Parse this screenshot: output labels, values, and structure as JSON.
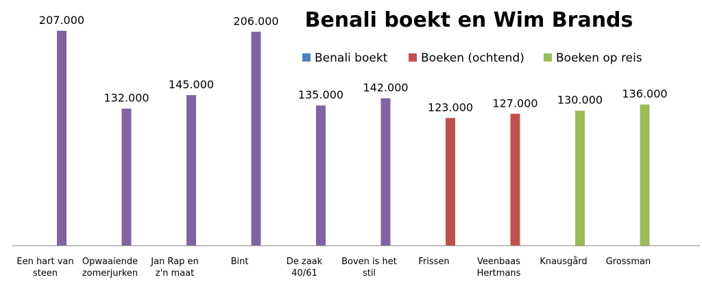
{
  "chart_data": {
    "type": "bar",
    "title": "Benali boekt en Wim Brands",
    "xlabel": "",
    "ylabel": "",
    "ylim": [
      0,
      230000
    ],
    "grid": false,
    "legend_position": "top",
    "legend": [
      {
        "name": "Benali boekt",
        "color": "#4F81BD"
      },
      {
        "name": "Boeken (ochtend)",
        "color": "#C0504D"
      },
      {
        "name": "Boeken op reis",
        "color": "#9BBB59"
      }
    ],
    "categories": [
      [
        "Een hart van",
        "steen"
      ],
      [
        "Opwaaiende",
        "zomerjurken"
      ],
      [
        "Jan Rap en",
        "z'n maat"
      ],
      [
        "Bint"
      ],
      [
        "De zaak",
        "40/61"
      ],
      [
        "Boven is het",
        "stil"
      ],
      [
        "Frissen"
      ],
      [
        "Veenbaas",
        "Hertmans"
      ],
      [
        "Knausgård"
      ],
      [
        "Grossman"
      ]
    ],
    "values": [
      207000,
      132000,
      145000,
      206000,
      135000,
      142000,
      123000,
      127000,
      130000,
      136000
    ],
    "value_labels": [
      "207.000",
      "132.000",
      "145.000",
      "206.000",
      "135.000",
      "142.000",
      "123.000",
      "127.000",
      "130.000",
      "136.000"
    ],
    "bar_colors": [
      "#8064A2",
      "#8064A2",
      "#8064A2",
      "#8064A2",
      "#8064A2",
      "#8064A2",
      "#C0504D",
      "#C0504D",
      "#9BBB59",
      "#9BBB59"
    ]
  }
}
